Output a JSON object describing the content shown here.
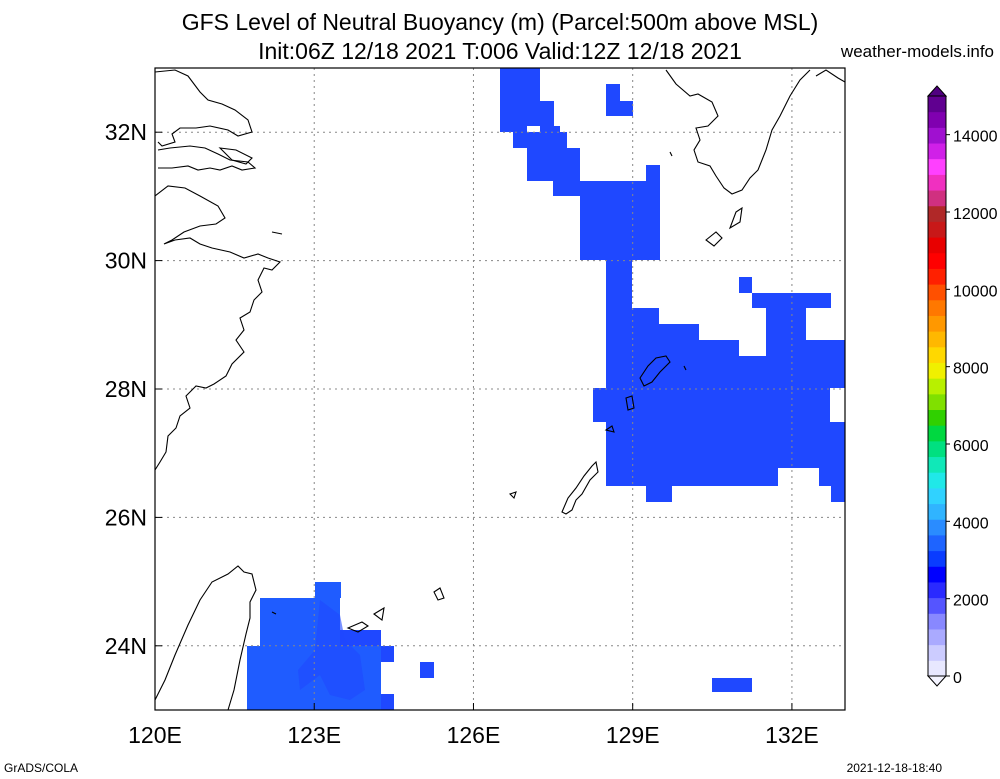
{
  "header": {
    "title_line1": "GFS Level of Neutral Buoyancy (m) (Parcel:500m above MSL)",
    "title_line2": "Init:06Z 12/18 2021 T:006 Valid:12Z 12/18 2021",
    "site": "weather-models.info"
  },
  "footer": {
    "left": "GrADS/COLA",
    "right": "2021-12-18-18:40"
  },
  "map": {
    "lon_range": [
      120,
      133
    ],
    "lat_range": [
      23,
      33
    ],
    "lon_ticks": [
      {
        "value": 120,
        "label": "120E"
      },
      {
        "value": 123,
        "label": "123E"
      },
      {
        "value": 126,
        "label": "126E"
      },
      {
        "value": 129,
        "label": "129E"
      },
      {
        "value": 132,
        "label": "132E"
      }
    ],
    "lat_ticks": [
      {
        "value": 24,
        "label": "24N"
      },
      {
        "value": 26,
        "label": "26N"
      },
      {
        "value": 28,
        "label": "28N"
      },
      {
        "value": 30,
        "label": "30N"
      },
      {
        "value": 32,
        "label": "32N"
      }
    ],
    "grid": true
  },
  "colorbar": {
    "min": 0,
    "max": 15000,
    "labels": [
      "0",
      "2000",
      "4000",
      "6000",
      "8000",
      "10000",
      "12000",
      "14000"
    ],
    "colors": [
      "#e8e8ff",
      "#ccccff",
      "#aaaaff",
      "#8888ff",
      "#5555ff",
      "#2a2aff",
      "#0000ff",
      "#0a3cff",
      "#1e64ff",
      "#2a8cff",
      "#30b4ff",
      "#30d2ff",
      "#20e8e8",
      "#10e8b8",
      "#00e080",
      "#00d840",
      "#30d000",
      "#80e000",
      "#b8f000",
      "#f0f000",
      "#ffd800",
      "#ffb800",
      "#ff9800",
      "#ff7800",
      "#ff5000",
      "#ff2000",
      "#ff0000",
      "#e80000",
      "#c81818",
      "#b02828",
      "#d03080",
      "#f030c0",
      "#ff40ff",
      "#d020e8",
      "#a010d0",
      "#8000b0",
      "#600090"
    ]
  }
}
